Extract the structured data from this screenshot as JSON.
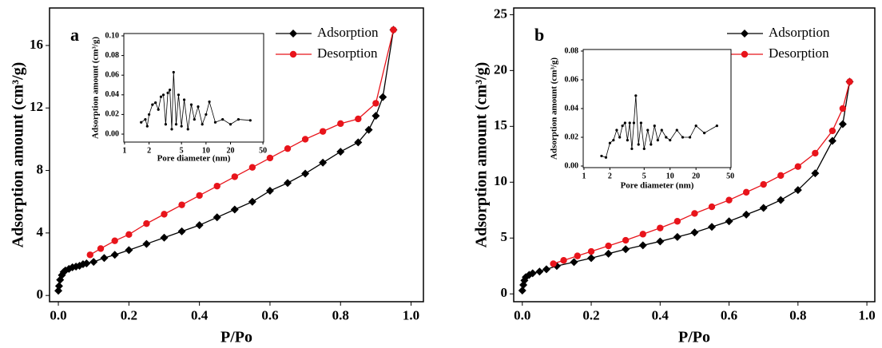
{
  "chart_data": [
    {
      "type": "line",
      "panel_label": "a",
      "xlabel": "P/Po",
      "ylabel": "Adsorption amount (cm³/g)",
      "xlim": [
        -0.025,
        1.035
      ],
      "ylim": [
        -0.4,
        18.4
      ],
      "xticks": [
        {
          "value": 0,
          "label": "0.0"
        },
        {
          "value": 0.2,
          "label": "0.2"
        },
        {
          "value": 0.4,
          "label": "0.4"
        },
        {
          "value": 0.6,
          "label": "0.6"
        },
        {
          "value": 0.8,
          "label": "0.8"
        },
        {
          "value": 1,
          "label": "1.0"
        }
      ],
      "yticks": [
        0,
        4,
        8,
        12,
        16
      ],
      "legend": "upper right",
      "series": [
        {
          "name": "Adsorption",
          "color": "#000000",
          "marker": "diamond",
          "x": [
            0.0,
            0.002,
            0.005,
            0.01,
            0.015,
            0.02,
            0.03,
            0.04,
            0.05,
            0.06,
            0.07,
            0.08,
            0.1,
            0.13,
            0.16,
            0.2,
            0.25,
            0.3,
            0.35,
            0.4,
            0.45,
            0.5,
            0.55,
            0.6,
            0.65,
            0.7,
            0.75,
            0.8,
            0.85,
            0.88,
            0.9,
            0.92,
            0.95
          ],
          "values": [
            0.3,
            0.6,
            1.0,
            1.3,
            1.5,
            1.6,
            1.7,
            1.8,
            1.85,
            1.9,
            2.0,
            2.05,
            2.15,
            2.4,
            2.6,
            2.9,
            3.3,
            3.7,
            4.1,
            4.5,
            5.0,
            5.5,
            6.0,
            6.7,
            7.2,
            7.8,
            8.5,
            9.2,
            9.8,
            10.6,
            11.5,
            12.7,
            17.0
          ]
        },
        {
          "name": "Desorption",
          "color": "#e8141b",
          "marker": "circle",
          "x": [
            0.09,
            0.12,
            0.16,
            0.2,
            0.25,
            0.3,
            0.35,
            0.4,
            0.45,
            0.5,
            0.55,
            0.6,
            0.65,
            0.7,
            0.75,
            0.8,
            0.85,
            0.9,
            0.95
          ],
          "values": [
            2.6,
            3.0,
            3.5,
            3.9,
            4.6,
            5.2,
            5.8,
            6.4,
            7.0,
            7.6,
            8.2,
            8.8,
            9.4,
            10.0,
            10.5,
            11.0,
            11.3,
            12.3,
            17.0
          ]
        }
      ]
    },
    {
      "type": "line",
      "xlabel": "Pore diameter (nm)",
      "ylabel": "Adsorption amount (cm³/g)",
      "log_x": true,
      "xlim": [
        0.98,
        51
      ],
      "ylim": [
        -0.0081,
        0.1024
      ],
      "xticks": [
        1,
        2,
        5,
        10,
        20,
        50
      ],
      "yticks": [
        {
          "value": 0,
          "label": "0.00"
        },
        {
          "value": 0.02,
          "label": "0.02"
        },
        {
          "value": 0.04,
          "label": "0.04"
        },
        {
          "value": 0.06,
          "label": "0.06"
        },
        {
          "value": 0.08,
          "label": "0.08"
        },
        {
          "value": 0.1,
          "label": "0.10"
        }
      ],
      "series": [
        {
          "color": "#000000",
          "marker": "dot",
          "x": [
            1.6,
            1.8,
            1.9,
            2.0,
            2.2,
            2.4,
            2.6,
            2.8,
            3.0,
            3.2,
            3.4,
            3.6,
            3.8,
            4.0,
            4.3,
            4.6,
            5.0,
            5.4,
            6.0,
            6.6,
            7.2,
            8.0,
            9.0,
            10,
            11,
            13,
            16,
            20,
            25,
            35
          ],
          "values": [
            0.012,
            0.015,
            0.008,
            0.02,
            0.03,
            0.032,
            0.025,
            0.038,
            0.04,
            0.01,
            0.042,
            0.045,
            0.005,
            0.063,
            0.01,
            0.04,
            0.008,
            0.035,
            0.005,
            0.03,
            0.015,
            0.028,
            0.01,
            0.02,
            0.033,
            0.012,
            0.015,
            0.01,
            0.015,
            0.014
          ]
        }
      ]
    },
    {
      "type": "line",
      "panel_label": "b",
      "xlabel": "P/Po",
      "ylabel": "Adsorption amount (cm³/g)",
      "xlim": [
        -0.025,
        1.023
      ],
      "ylim": [
        -0.7,
        25.6
      ],
      "xticks": [
        {
          "value": 0,
          "label": "0.0"
        },
        {
          "value": 0.2,
          "label": "0.2"
        },
        {
          "value": 0.4,
          "label": "0.4"
        },
        {
          "value": 0.6,
          "label": "0.6"
        },
        {
          "value": 0.8,
          "label": "0.8"
        },
        {
          "value": 1,
          "label": "1.0"
        }
      ],
      "yticks": [
        0,
        5,
        10,
        15,
        20,
        25
      ],
      "legend": "upper right",
      "series": [
        {
          "name": "Adsorption",
          "color": "#000000",
          "marker": "diamond",
          "x": [
            0.0,
            0.003,
            0.006,
            0.01,
            0.02,
            0.03,
            0.05,
            0.07,
            0.1,
            0.15,
            0.2,
            0.25,
            0.3,
            0.35,
            0.4,
            0.45,
            0.5,
            0.55,
            0.6,
            0.65,
            0.7,
            0.75,
            0.8,
            0.85,
            0.9,
            0.93,
            0.95
          ],
          "values": [
            0.3,
            0.8,
            1.2,
            1.5,
            1.7,
            1.85,
            2.0,
            2.2,
            2.5,
            2.85,
            3.2,
            3.6,
            4.0,
            4.35,
            4.7,
            5.1,
            5.5,
            6.0,
            6.5,
            7.1,
            7.7,
            8.4,
            9.3,
            10.8,
            13.7,
            15.2,
            19.0
          ]
        },
        {
          "name": "Desorption",
          "color": "#e8141b",
          "marker": "circle",
          "x": [
            0.09,
            0.12,
            0.16,
            0.2,
            0.25,
            0.3,
            0.35,
            0.4,
            0.45,
            0.5,
            0.55,
            0.6,
            0.65,
            0.7,
            0.75,
            0.8,
            0.85,
            0.9,
            0.93,
            0.95
          ],
          "values": [
            2.7,
            3.0,
            3.4,
            3.8,
            4.3,
            4.8,
            5.35,
            5.9,
            6.5,
            7.2,
            7.8,
            8.4,
            9.1,
            9.8,
            10.6,
            11.4,
            12.6,
            14.6,
            16.6,
            19.0
          ]
        }
      ]
    },
    {
      "type": "line",
      "xlabel": "Pore diameter (nm)",
      "ylabel": "Adsorption amount (cm³/g)",
      "log_x": true,
      "xlim": [
        0.98,
        51
      ],
      "ylim": [
        -0.0011,
        0.0811
      ],
      "xticks": [
        1,
        2,
        5,
        10,
        20,
        50
      ],
      "yticks": [
        {
          "value": 0,
          "label": "0.00"
        },
        {
          "value": 0.02,
          "label": "0.02"
        },
        {
          "value": 0.04,
          "label": "0.04"
        },
        {
          "value": 0.06,
          "label": "0.06"
        },
        {
          "value": 0.08,
          "label": "0.08"
        }
      ],
      "series": [
        {
          "color": "#000000",
          "marker": "dot",
          "x": [
            1.6,
            1.8,
            2.0,
            2.2,
            2.4,
            2.6,
            2.8,
            3.0,
            3.2,
            3.4,
            3.6,
            3.8,
            4.0,
            4.3,
            4.6,
            5.0,
            5.5,
            6,
            6.6,
            7.2,
            8,
            9,
            10,
            12,
            14,
            17,
            20,
            25,
            35
          ],
          "values": [
            0.007,
            0.006,
            0.016,
            0.018,
            0.025,
            0.02,
            0.028,
            0.03,
            0.018,
            0.03,
            0.012,
            0.03,
            0.049,
            0.015,
            0.03,
            0.012,
            0.025,
            0.015,
            0.028,
            0.018,
            0.025,
            0.02,
            0.018,
            0.025,
            0.02,
            0.02,
            0.028,
            0.023,
            0.028
          ]
        }
      ]
    }
  ]
}
